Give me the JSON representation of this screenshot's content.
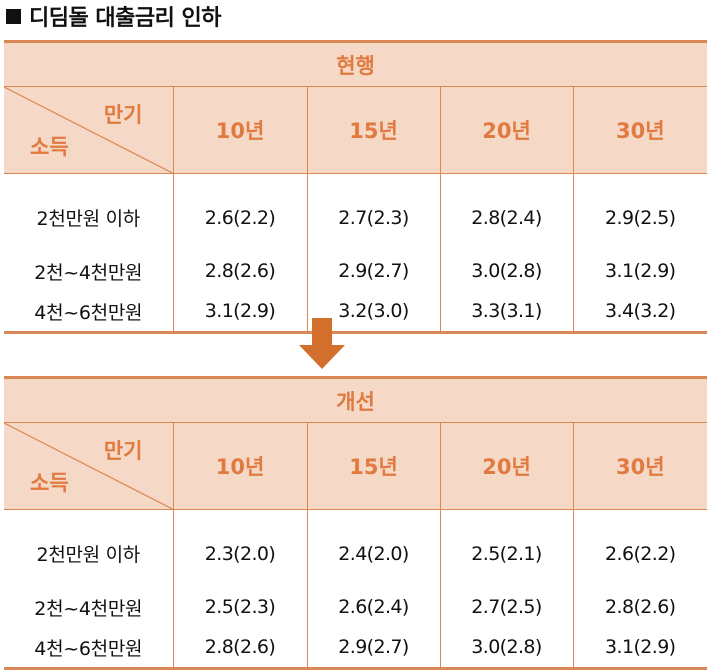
{
  "title": "디딤돌 대출금리 인하",
  "period_label": "만기",
  "income_label": "소득",
  "periods": [
    "10년",
    "15년",
    "20년",
    "30년"
  ],
  "current": {
    "caption": "현행",
    "rows": [
      {
        "income": "2천만원 이하",
        "rates": [
          "2.6(2.2)",
          "2.7(2.3)",
          "2.8(2.4)",
          "2.9(2.5)"
        ]
      },
      {
        "income": "2천~4천만원",
        "rates": [
          "2.8(2.6)",
          "2.9(2.7)",
          "3.0(2.8)",
          "3.1(2.9)"
        ]
      },
      {
        "income": "4천~6천만원",
        "rates": [
          "3.1(2.9)",
          "3.2(3.0)",
          "3.3(3.1)",
          "3.4(3.2)"
        ]
      }
    ]
  },
  "improved": {
    "caption": "개선",
    "rows": [
      {
        "income": "2천만원 이하",
        "rates": [
          "2.3(2.0)",
          "2.4(2.0)",
          "2.5(2.1)",
          "2.6(2.2)"
        ]
      },
      {
        "income": "2천~4천만원",
        "rates": [
          "2.5(2.3)",
          "2.6(2.4)",
          "2.7(2.5)",
          "2.8(2.6)"
        ]
      },
      {
        "income": "4천~6천만원",
        "rates": [
          "2.8(2.6)",
          "2.9(2.7)",
          "3.0(2.8)",
          "3.1(2.9)"
        ]
      }
    ]
  },
  "colors": {
    "header_bg": "#f5d8c6",
    "header_text": "#e07a3f",
    "rule": "#d98757",
    "arrow": "#d26f2c"
  },
  "icons": {
    "arrow": "down-arrow-icon",
    "bullet": "square-bullet-icon"
  }
}
